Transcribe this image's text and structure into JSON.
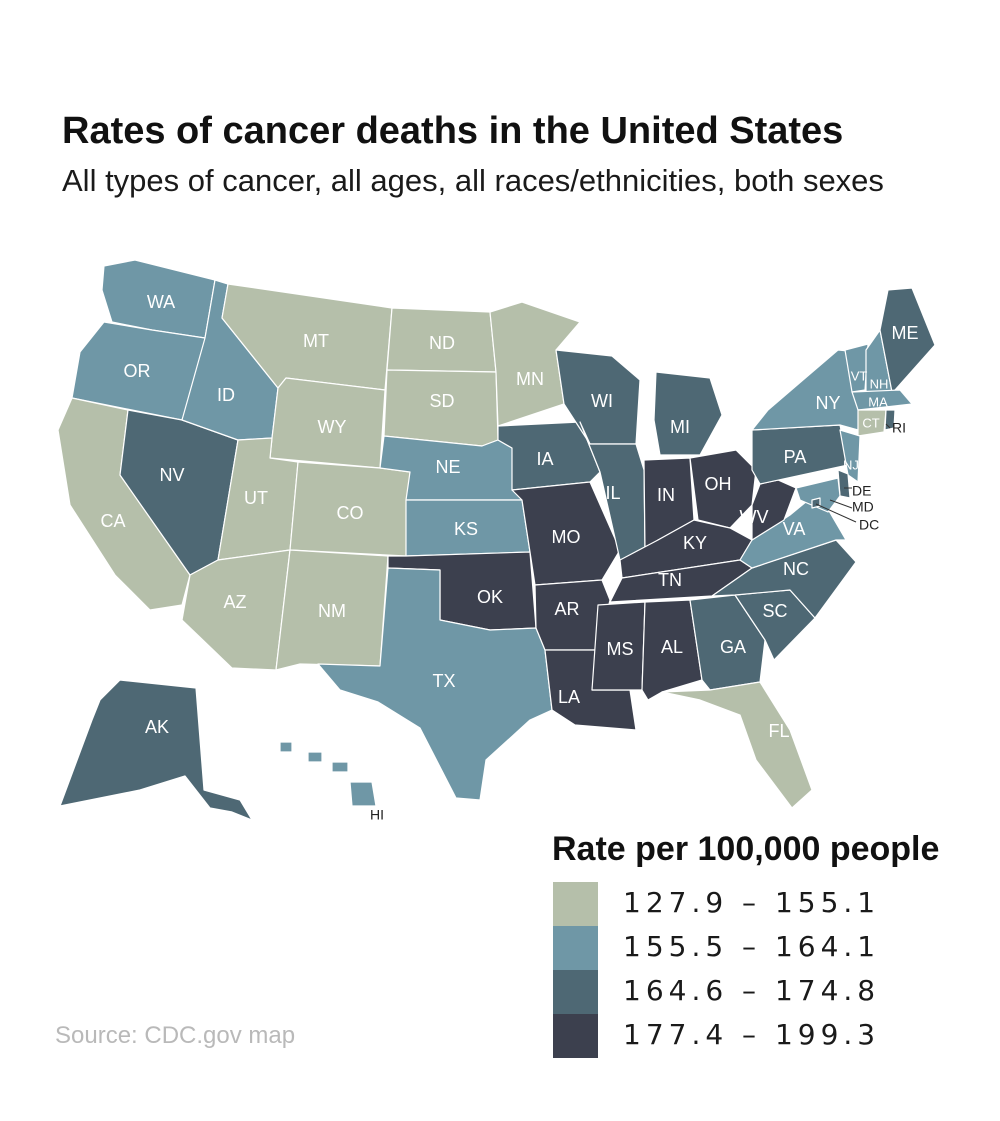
{
  "title": "Rates of cancer deaths in the United States",
  "subtitle": "All types of cancer, all ages, all races/ethnicities, both sexes",
  "source": "Source: CDC.gov map",
  "legend": {
    "title": "Rate per 100,000 people",
    "bins": [
      {
        "id": "low",
        "label": "127.9 – 155.1",
        "color": "#b5bfaa"
      },
      {
        "id": "midlow",
        "label": "155.5 – 164.1",
        "color": "#6f97a6"
      },
      {
        "id": "midhigh",
        "label": "164.6 – 174.8",
        "color": "#4e6874"
      },
      {
        "id": "high",
        "label": "177.4 – 199.3",
        "color": "#3c404e"
      }
    ]
  },
  "states": {
    "WA": "midlow",
    "OR": "midlow",
    "CA": "low",
    "NV": "midhigh",
    "ID": "midlow",
    "MT": "low",
    "WY": "low",
    "UT": "low",
    "AZ": "low",
    "CO": "low",
    "NM": "low",
    "ND": "low",
    "SD": "low",
    "NE": "midlow",
    "KS": "midlow",
    "OK": "high",
    "TX": "midlow",
    "MN": "low",
    "IA": "midhigh",
    "MO": "high",
    "AR": "high",
    "LA": "high",
    "WI": "midhigh",
    "IL": "midhigh",
    "MI": "midhigh",
    "IN": "high",
    "OH": "high",
    "KY": "high",
    "TN": "high",
    "MS": "high",
    "AL": "high",
    "GA": "midhigh",
    "FL": "low",
    "SC": "midhigh",
    "NC": "midhigh",
    "VA": "midlow",
    "WV": "high",
    "PA": "midhigh",
    "NY": "midlow",
    "VT": "midlow",
    "NH": "midlow",
    "ME": "midhigh",
    "MA": "midlow",
    "RI": "midhigh",
    "CT": "low",
    "NJ": "midlow",
    "DE": "midhigh",
    "MD": "midlow",
    "DC": "midhigh",
    "AK": "midhigh",
    "HI": "midlow"
  }
}
